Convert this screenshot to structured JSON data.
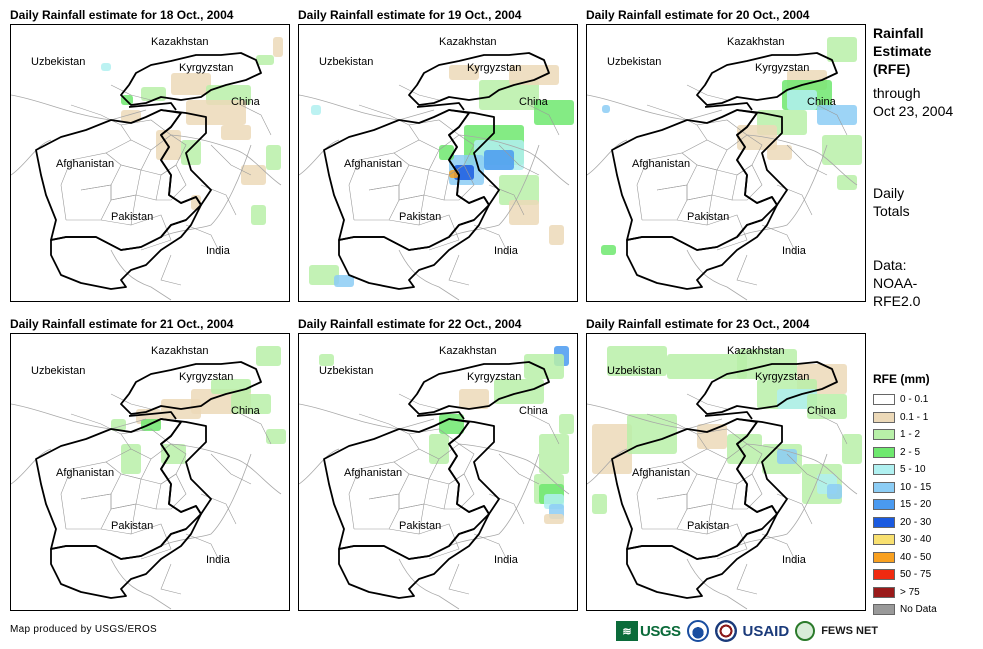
{
  "panels": [
    {
      "title": "Daily Rainfall estimate for 18 Oct., 2004"
    },
    {
      "title": "Daily Rainfall estimate for 19 Oct., 2004"
    },
    {
      "title": "Daily Rainfall estimate for 20 Oct., 2004"
    },
    {
      "title": "Daily Rainfall estimate for 21 Oct., 2004"
    },
    {
      "title": "Daily Rainfall estimate for 22 Oct., 2004"
    },
    {
      "title": "Daily Rainfall estimate for 23 Oct., 2004"
    }
  ],
  "map_labels": {
    "kazakhstan": "Kazakhstan",
    "uzbekistan": "Uzbekistan",
    "kyrgyzstan": "Kyrgyzstan",
    "china": "China",
    "afghanistan": "Afghanistan",
    "pakistan": "Pakistan",
    "india": "India"
  },
  "side": {
    "title_line1": "Rainfall",
    "title_line2": "Estimate",
    "title_line3": "(RFE)",
    "through": "through",
    "date": "Oct 23, 2004",
    "daily1": "Daily",
    "daily2": "Totals",
    "data1": "Data:",
    "data2": "NOAA-",
    "data3": "RFE2.0"
  },
  "legend": {
    "title": "RFE (mm)",
    "items": [
      {
        "label": "0 - 0.1",
        "color": "#ffffff"
      },
      {
        "label": "0.1 - 1",
        "color": "#ecd9b8"
      },
      {
        "label": "1 - 2",
        "color": "#b8f0a8"
      },
      {
        "label": "2 - 5",
        "color": "#6ee86e"
      },
      {
        "label": "5 - 10",
        "color": "#b0f0f0"
      },
      {
        "label": "10 - 15",
        "color": "#8ccdf5"
      },
      {
        "label": "15 - 20",
        "color": "#4a9af0"
      },
      {
        "label": "20 - 30",
        "color": "#1a5ae0"
      },
      {
        "label": "30 - 40",
        "color": "#f8e070"
      },
      {
        "label": "40 - 50",
        "color": "#f8a020"
      },
      {
        "label": "50 - 75",
        "color": "#f02a10"
      },
      {
        "label": "> 75",
        "color": "#9a1a1a"
      },
      {
        "label": "No Data",
        "color": "#999999"
      }
    ]
  },
  "credit": "Map produced by USGS/EROS",
  "logos": {
    "usgs": "USGS",
    "usaid": "USAID",
    "fews": "FEWS NET"
  }
}
